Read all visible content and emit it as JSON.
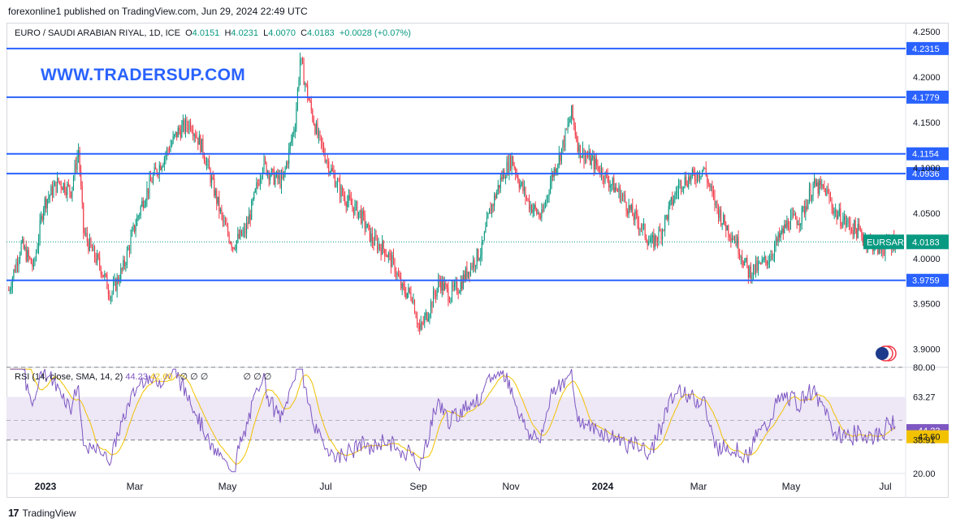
{
  "header": {
    "publisher_line": "forexonline1 published on TradingView.com, Jun 29, 2024 22:49 UTC"
  },
  "legend": {
    "symbol": "EURO / SAUDI ARABIAN RIYAL, 1D, ICE",
    "open_label": "O",
    "open": "4.0151",
    "high_label": "H",
    "high": "4.0231",
    "low_label": "L",
    "low": "4.0070",
    "close_label": "C",
    "close": "4.0183",
    "change": "+0.0028 (+0.07%)"
  },
  "watermark": "WWW.TRADERSUP.COM",
  "footer": {
    "brand_mark": "17",
    "brand": "TradingView"
  },
  "rsi_legend": {
    "label": "RSI (14, close, SMA, 14, 2)",
    "rsi_value": "44.23",
    "sma_value": "42.60",
    "circles": "∅ ∅ ∅",
    "circles2": "∅ ∅ ∅"
  },
  "colors": {
    "up": "#089981",
    "down": "#f23645",
    "line": "#2962ff",
    "rsi": "#7e57c2",
    "sma": "#f2c200",
    "band": "#ede7f6"
  },
  "chart_data": {
    "type": "candlestick",
    "title": "EURO / SAUDI ARABIAN RIYAL, 1D, ICE",
    "price_axis": {
      "ylim": [
        3.88,
        4.26
      ],
      "ticks": [
        "4.2500",
        "4.2000",
        "4.1500",
        "4.1000",
        "4.0500",
        "4.0000",
        "3.9500",
        "3.9000"
      ]
    },
    "time_axis": [
      "2023",
      "Mar",
      "May",
      "Jul",
      "Sep",
      "Nov",
      "2024",
      "Mar",
      "May",
      "Jul"
    ],
    "horizontal_levels": [
      "4.2315",
      "4.1779",
      "4.1154",
      "4.0936",
      "3.9759"
    ],
    "last_price": {
      "symbol": "EURSAR",
      "value": "4.0183"
    },
    "close_path": [
      [
        0,
        3.965
      ],
      [
        10,
        4.015
      ],
      [
        20,
        3.99
      ],
      [
        28,
        4.06
      ],
      [
        40,
        4.085
      ],
      [
        50,
        4.075
      ],
      [
        56,
        4.12
      ],
      [
        60,
        4.03
      ],
      [
        66,
        4.01
      ],
      [
        74,
        3.99
      ],
      [
        82,
        3.96
      ],
      [
        92,
        3.99
      ],
      [
        100,
        4.03
      ],
      [
        108,
        4.065
      ],
      [
        116,
        4.09
      ],
      [
        124,
        4.11
      ],
      [
        136,
        4.14
      ],
      [
        146,
        4.15
      ],
      [
        156,
        4.12
      ],
      [
        164,
        4.08
      ],
      [
        172,
        4.04
      ],
      [
        180,
        4.015
      ],
      [
        190,
        4.03
      ],
      [
        196,
        4.06
      ],
      [
        204,
        4.105
      ],
      [
        212,
        4.09
      ],
      [
        220,
        4.085
      ],
      [
        230,
        4.15
      ],
      [
        234,
        4.22
      ],
      [
        240,
        4.18
      ],
      [
        248,
        4.135
      ],
      [
        258,
        4.1
      ],
      [
        266,
        4.075
      ],
      [
        274,
        4.06
      ],
      [
        282,
        4.05
      ],
      [
        292,
        4.02
      ],
      [
        302,
        4.01
      ],
      [
        310,
        3.99
      ],
      [
        316,
        3.965
      ],
      [
        324,
        3.96
      ],
      [
        330,
        3.92
      ],
      [
        338,
        3.945
      ],
      [
        346,
        3.975
      ],
      [
        354,
        3.96
      ],
      [
        362,
        3.97
      ],
      [
        370,
        3.99
      ],
      [
        380,
        4.01
      ],
      [
        386,
        4.05
      ],
      [
        396,
        4.09
      ],
      [
        404,
        4.11
      ],
      [
        410,
        4.085
      ],
      [
        418,
        4.06
      ],
      [
        428,
        4.045
      ],
      [
        436,
        4.09
      ],
      [
        444,
        4.12
      ],
      [
        452,
        4.16
      ],
      [
        458,
        4.12
      ],
      [
        466,
        4.11
      ],
      [
        474,
        4.1
      ],
      [
        482,
        4.085
      ],
      [
        492,
        4.07
      ],
      [
        500,
        4.05
      ],
      [
        508,
        4.035
      ],
      [
        516,
        4.015
      ],
      [
        524,
        4.03
      ],
      [
        532,
        4.06
      ],
      [
        540,
        4.085
      ],
      [
        550,
        4.09
      ],
      [
        558,
        4.1
      ],
      [
        566,
        4.065
      ],
      [
        574,
        4.04
      ],
      [
        584,
        4.02
      ],
      [
        594,
        3.985
      ],
      [
        602,
        3.99
      ],
      [
        610,
        4.0
      ],
      [
        618,
        4.02
      ],
      [
        626,
        4.04
      ],
      [
        636,
        4.045
      ],
      [
        646,
        4.08
      ],
      [
        656,
        4.075
      ],
      [
        664,
        4.05
      ],
      [
        672,
        4.04
      ],
      [
        682,
        4.03
      ],
      [
        690,
        4.02
      ],
      [
        700,
        4.01
      ],
      [
        712,
        4.02
      ]
    ],
    "rsi": {
      "ticks": [
        "80.00",
        "63.27",
        "38.91",
        "20.00"
      ],
      "rsi_value": "44.23",
      "sma_value": "42.60",
      "ylim": [
        20,
        80
      ],
      "band": [
        38.91,
        63.27
      ]
    }
  }
}
